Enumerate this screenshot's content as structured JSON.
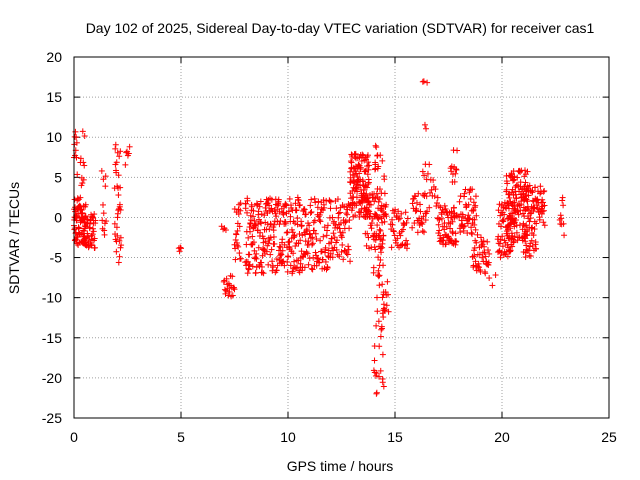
{
  "chart_data": {
    "type": "scatter",
    "title": "Day 102 of 2025, Sidereal Day-to-day VTEC variation (SDTVAR) for receiver cas1",
    "xlabel": "GPS time / hours",
    "ylabel": "SDTVAR / TECUs",
    "xlim": [
      0,
      25
    ],
    "ylim": [
      -25,
      20
    ],
    "xticks": [
      0,
      5,
      10,
      15,
      20,
      25
    ],
    "yticks": [
      -25,
      -20,
      -15,
      -10,
      -5,
      0,
      5,
      10,
      15,
      20
    ],
    "grid": true,
    "marker": "+",
    "color": "#ff0000",
    "series": [
      {
        "name": "SDTVAR",
        "clusters": [
          {
            "x": [
              0.0,
              0.55
            ],
            "y_min": -3.5,
            "y_max": 2.5,
            "n": 90
          },
          {
            "x": [
              0.0,
              0.15
            ],
            "y_min": 5,
            "y_max": 12,
            "n": 10
          },
          {
            "x": [
              0.3,
              0.5
            ],
            "y_min": 4,
            "y_max": 11,
            "n": 10
          },
          {
            "x": [
              0.5,
              1.0
            ],
            "y_min": -4,
            "y_max": 0.5,
            "n": 45
          },
          {
            "x": [
              1.3,
              1.5
            ],
            "y_min": -3,
            "y_max": 6,
            "n": 12
          },
          {
            "x": [
              1.9,
              2.2
            ],
            "y_min": -6,
            "y_max": 10.5,
            "n": 35
          },
          {
            "x": [
              2.4,
              2.6
            ],
            "y_min": 6,
            "y_max": 9.5,
            "n": 6
          },
          {
            "x": [
              4.9,
              5.0
            ],
            "y_min": -4.4,
            "y_max": -3.6,
            "n": 4
          },
          {
            "x": [
              6.9,
              7.1
            ],
            "y_min": -1.6,
            "y_max": -0.6,
            "n": 4
          },
          {
            "x": [
              7.0,
              7.5
            ],
            "y_min": -10,
            "y_max": -7,
            "n": 20
          },
          {
            "x": [
              7.5,
              7.8
            ],
            "y_min": -5.5,
            "y_max": 2,
            "n": 22
          },
          {
            "x": [
              8.0,
              9.6
            ],
            "y_min": -7,
            "y_max": 2.5,
            "n": 150
          },
          {
            "x": [
              9.6,
              10.8
            ],
            "y_min": -7,
            "y_max": 2.5,
            "n": 110
          },
          {
            "x": [
              10.8,
              12.0
            ],
            "y_min": -6.5,
            "y_max": 2.5,
            "n": 90
          },
          {
            "x": [
              12.0,
              12.9
            ],
            "y_min": -5.5,
            "y_max": 2.5,
            "n": 60
          },
          {
            "x": [
              12.9,
              13.8
            ],
            "y_min": 0,
            "y_max": 8,
            "n": 130
          },
          {
            "x": [
              13.6,
              14.6
            ],
            "y_min": -4,
            "y_max": 3,
            "n": 70
          },
          {
            "x": [
              14.0,
              14.5
            ],
            "y_min": -23,
            "y_max": 9,
            "n": 70
          },
          {
            "x": [
              14.4,
              14.7
            ],
            "y_min": -12,
            "y_max": -8,
            "n": 12
          },
          {
            "x": [
              14.8,
              15.6
            ],
            "y_min": -4,
            "y_max": 1,
            "n": 40
          },
          {
            "x": [
              15.8,
              16.5
            ],
            "y_min": -2,
            "y_max": 3,
            "n": 35
          },
          {
            "x": [
              16.3,
              16.5
            ],
            "y_min": 10,
            "y_max": 17,
            "n": 5
          },
          {
            "x": [
              16.3,
              16.6
            ],
            "y_min": 4,
            "y_max": 8,
            "n": 6
          },
          {
            "x": [
              16.6,
              17.0
            ],
            "y_min": 1,
            "y_max": 5,
            "n": 12
          },
          {
            "x": [
              17.0,
              17.9
            ],
            "y_min": -3.5,
            "y_max": 1.5,
            "n": 70
          },
          {
            "x": [
              17.6,
              17.9
            ],
            "y_min": 4,
            "y_max": 8.5,
            "n": 12
          },
          {
            "x": [
              18.0,
              18.8
            ],
            "y_min": -2,
            "y_max": 4,
            "n": 50
          },
          {
            "x": [
              18.6,
              19.4
            ],
            "y_min": -7,
            "y_max": -2,
            "n": 45
          },
          {
            "x": [
              19.4,
              19.7
            ],
            "y_min": -8.5,
            "y_max": -7,
            "n": 3
          },
          {
            "x": [
              19.8,
              20.6
            ],
            "y_min": -5,
            "y_max": 2,
            "n": 70
          },
          {
            "x": [
              20.2,
              21.2
            ],
            "y_min": -3,
            "y_max": 6,
            "n": 120
          },
          {
            "x": [
              21.0,
              21.6
            ],
            "y_min": -5,
            "y_max": 4,
            "n": 70
          },
          {
            "x": [
              21.6,
              22.0
            ],
            "y_min": -1,
            "y_max": 4,
            "n": 30
          },
          {
            "x": [
              22.7,
              22.9
            ],
            "y_min": -3,
            "y_max": 2.5,
            "n": 10
          }
        ]
      }
    ]
  }
}
